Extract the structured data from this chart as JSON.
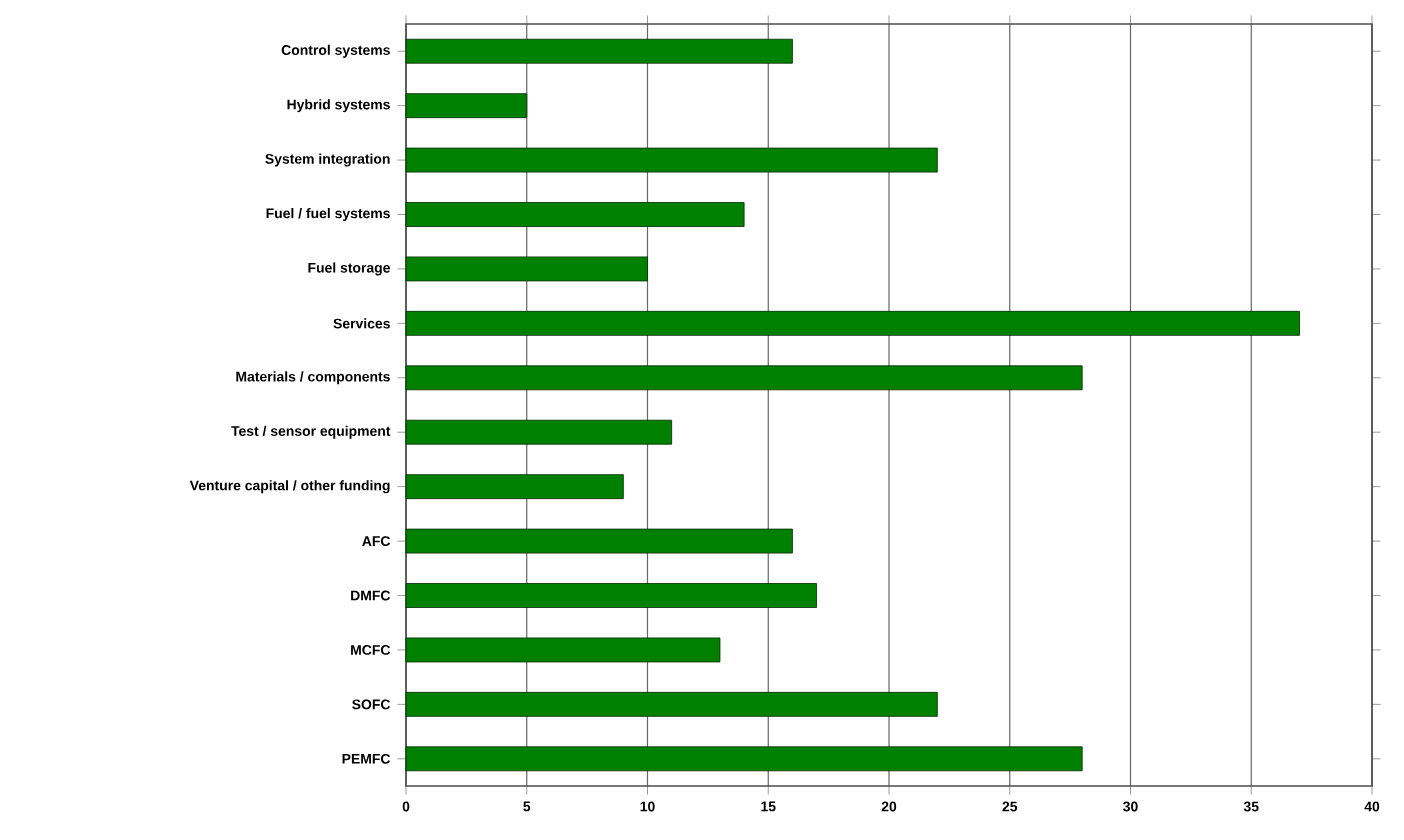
{
  "chart_data": {
    "type": "bar",
    "orientation": "horizontal",
    "categories": [
      "Control systems",
      "Hybrid systems",
      "System integration",
      "Fuel / fuel systems",
      "Fuel storage",
      "Services",
      "Materials / components",
      "Test / sensor equipment",
      "Venture capital / other funding",
      "AFC",
      "DMFC",
      "MCFC",
      "SOFC",
      "PEMFC"
    ],
    "values": [
      16,
      5,
      22,
      14,
      10,
      37,
      28,
      11,
      9,
      16,
      17,
      13,
      22,
      28
    ],
    "color": "#008000",
    "xlim": [
      0,
      40
    ],
    "xticks": [
      0,
      5,
      10,
      15,
      20,
      25,
      30,
      35,
      40
    ],
    "grid": "x"
  }
}
